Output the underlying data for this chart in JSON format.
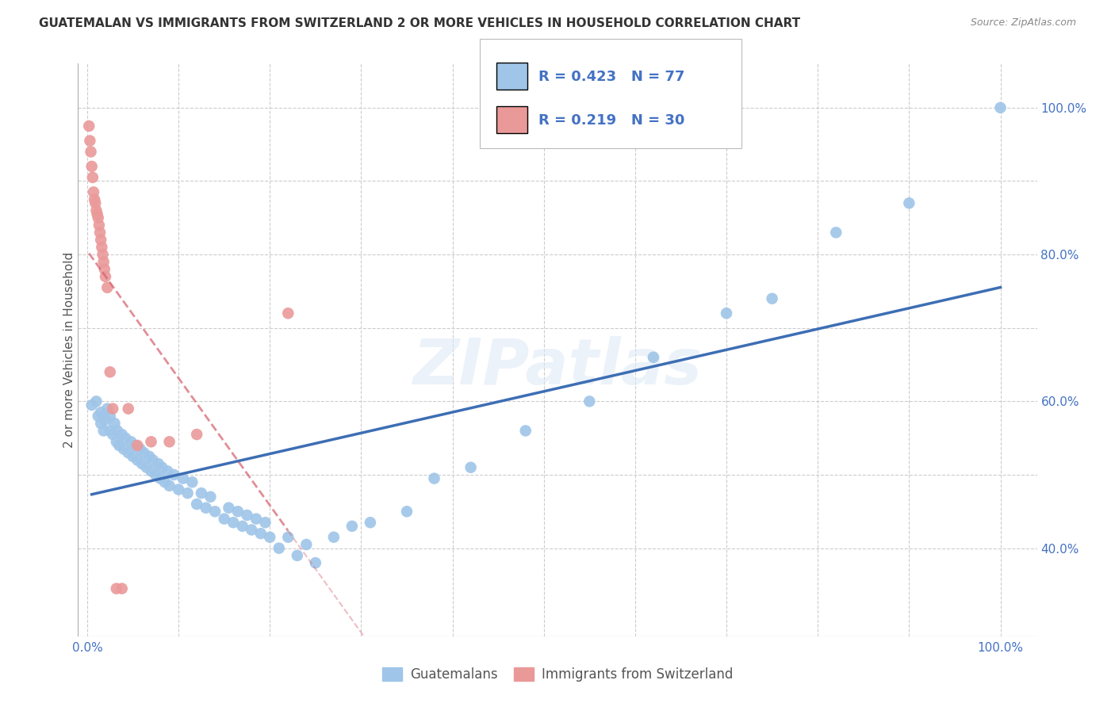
{
  "title": "GUATEMALAN VS IMMIGRANTS FROM SWITZERLAND 2 OR MORE VEHICLES IN HOUSEHOLD CORRELATION CHART",
  "source": "Source: ZipAtlas.com",
  "ylabel": "2 or more Vehicles in Household",
  "R_blue": 0.423,
  "N_blue": 77,
  "R_pink": 0.219,
  "N_pink": 30,
  "blue_color": "#9fc5e8",
  "pink_color": "#ea9999",
  "trendline_blue": "#3d6eb4",
  "trendline_pink": "#d55f6e",
  "legend_text_color": "#4472c4",
  "watermark": "ZIPatlas",
  "x_min": -0.01,
  "x_max": 1.04,
  "y_min": 0.28,
  "y_max": 1.06,
  "blue_scatter_x": [
    0.005,
    0.01,
    0.012,
    0.015,
    0.015,
    0.018,
    0.02,
    0.022,
    0.025,
    0.025,
    0.028,
    0.03,
    0.032,
    0.033,
    0.035,
    0.038,
    0.04,
    0.042,
    0.045,
    0.048,
    0.05,
    0.052,
    0.055,
    0.058,
    0.06,
    0.062,
    0.065,
    0.068,
    0.07,
    0.072,
    0.075,
    0.078,
    0.08,
    0.082,
    0.085,
    0.088,
    0.09,
    0.095,
    0.1,
    0.105,
    0.11,
    0.115,
    0.12,
    0.125,
    0.13,
    0.135,
    0.14,
    0.15,
    0.155,
    0.16,
    0.165,
    0.17,
    0.175,
    0.18,
    0.185,
    0.19,
    0.195,
    0.2,
    0.21,
    0.22,
    0.23,
    0.24,
    0.25,
    0.27,
    0.29,
    0.31,
    0.35,
    0.38,
    0.42,
    0.48,
    0.55,
    0.62,
    0.7,
    0.75,
    0.82,
    0.9,
    1.0
  ],
  "blue_scatter_y": [
    0.595,
    0.6,
    0.58,
    0.57,
    0.585,
    0.56,
    0.575,
    0.59,
    0.56,
    0.58,
    0.555,
    0.57,
    0.545,
    0.56,
    0.54,
    0.555,
    0.535,
    0.55,
    0.53,
    0.545,
    0.525,
    0.54,
    0.52,
    0.535,
    0.515,
    0.53,
    0.51,
    0.525,
    0.505,
    0.52,
    0.5,
    0.515,
    0.495,
    0.51,
    0.49,
    0.505,
    0.485,
    0.5,
    0.48,
    0.495,
    0.475,
    0.49,
    0.46,
    0.475,
    0.455,
    0.47,
    0.45,
    0.44,
    0.455,
    0.435,
    0.45,
    0.43,
    0.445,
    0.425,
    0.44,
    0.42,
    0.435,
    0.415,
    0.4,
    0.415,
    0.39,
    0.405,
    0.38,
    0.415,
    0.43,
    0.435,
    0.45,
    0.495,
    0.51,
    0.56,
    0.6,
    0.66,
    0.72,
    0.74,
    0.83,
    0.87,
    1.0
  ],
  "pink_scatter_x": [
    0.002,
    0.003,
    0.004,
    0.005,
    0.006,
    0.007,
    0.008,
    0.009,
    0.01,
    0.011,
    0.012,
    0.013,
    0.014,
    0.015,
    0.016,
    0.017,
    0.018,
    0.019,
    0.02,
    0.022,
    0.025,
    0.028,
    0.032,
    0.038,
    0.045,
    0.055,
    0.07,
    0.09,
    0.12,
    0.22
  ],
  "pink_scatter_y": [
    0.975,
    0.955,
    0.94,
    0.92,
    0.905,
    0.885,
    0.875,
    0.87,
    0.86,
    0.855,
    0.85,
    0.84,
    0.83,
    0.82,
    0.81,
    0.8,
    0.79,
    0.78,
    0.77,
    0.755,
    0.64,
    0.59,
    0.345,
    0.345,
    0.59,
    0.54,
    0.545,
    0.545,
    0.555,
    0.72
  ],
  "background_color": "#ffffff",
  "grid_color": "#cccccc"
}
